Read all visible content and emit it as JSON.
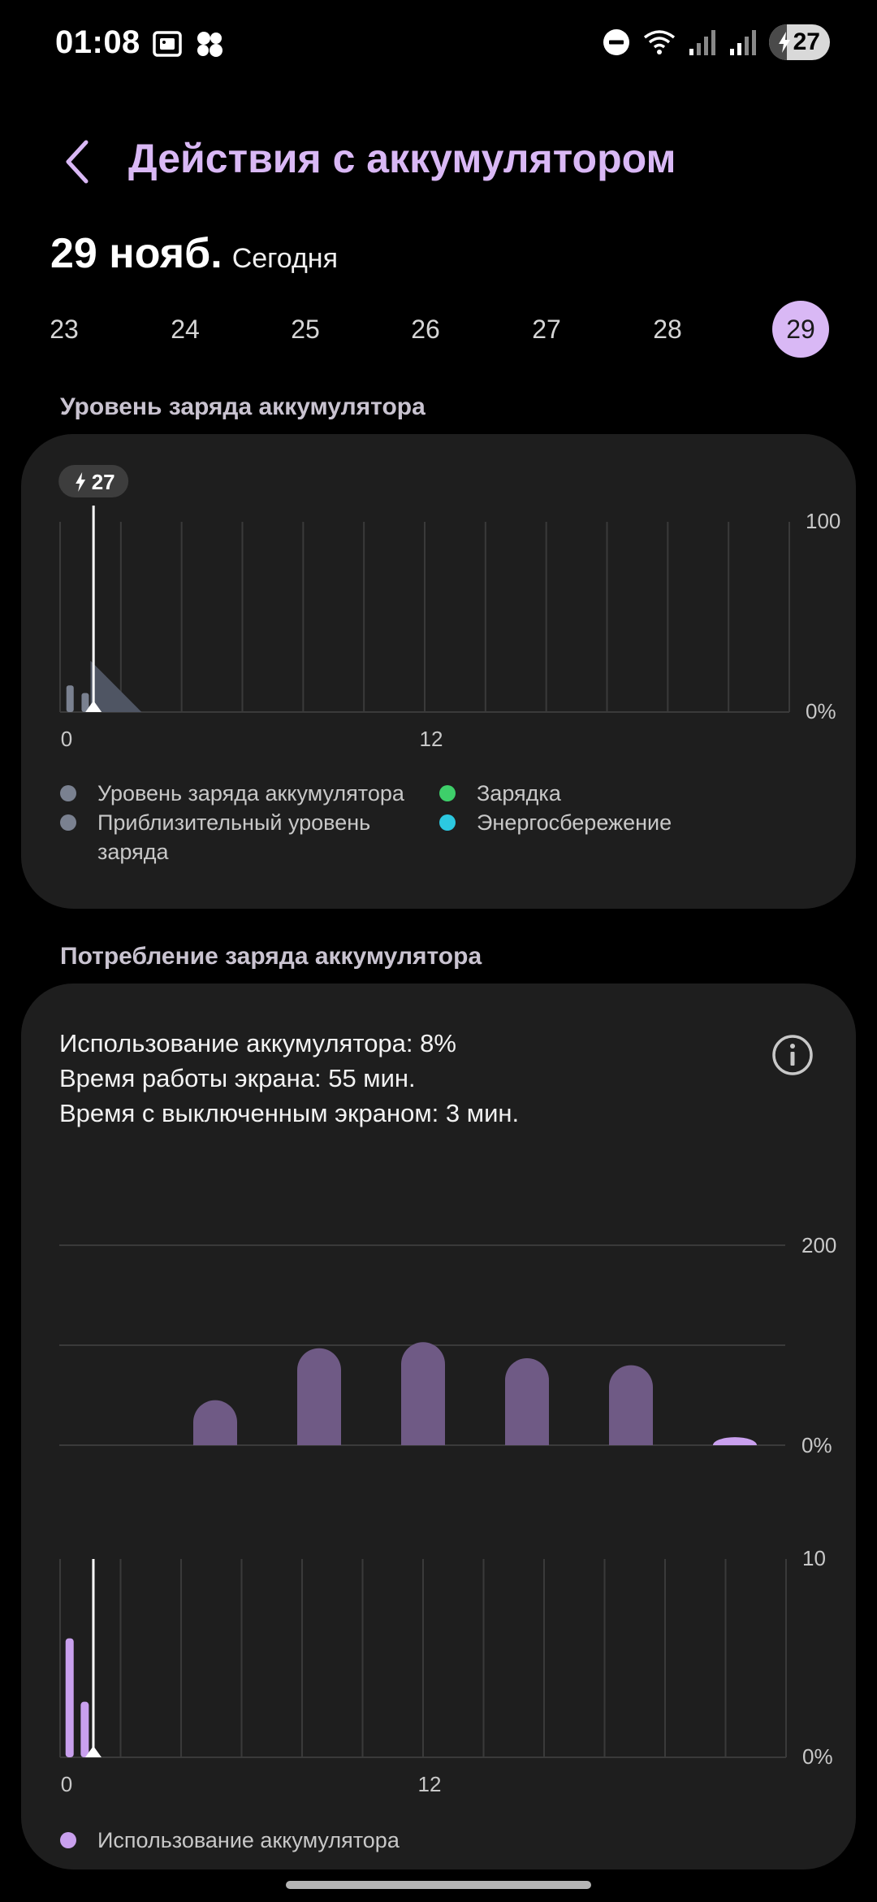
{
  "status_bar": {
    "time": "01:08",
    "battery_level": "27",
    "icons": [
      "screenshot-icon",
      "app-cluster-icon",
      "do-not-disturb-icon",
      "wifi-icon",
      "signal-icon",
      "signal-icon",
      "battery-charging-icon"
    ]
  },
  "header": {
    "title": "Действия с аккумулятором",
    "back_icon": "chevron-left-icon"
  },
  "date": {
    "main": "29 нояб.",
    "sub": "Сегодня"
  },
  "days": [
    "23",
    "24",
    "25",
    "26",
    "27",
    "28",
    "29"
  ],
  "selected_day": "29",
  "battery_level_section": {
    "title": "Уровень заряда аккумулятора",
    "badge": "27",
    "legend": [
      {
        "label": "Уровень заряда аккумулятора",
        "color": "#7a8190"
      },
      {
        "label": "Зарядка",
        "color": "#3ecf6a"
      },
      {
        "label": "Приблизительный уровень заряда",
        "color": "#7a8190"
      },
      {
        "label": "Энергосбережение",
        "color": "#2cc8e0"
      }
    ]
  },
  "consumption_section": {
    "title": "Потребление заряда аккумулятора",
    "lines": [
      "Использование аккумулятора: 8%",
      "Время работы экрана: 55 мин.",
      "Время с выключенным экраном: 3 мин."
    ],
    "legend_label": "Использование аккумулятора",
    "legend_color": "#c9a0ee"
  },
  "colors": {
    "accent": "#d9b8f5",
    "weekly_bar": "#6f5a85",
    "hourly_bar": "#c9a0ee",
    "level_bar": "#7a8190"
  },
  "chart_data": [
    {
      "type": "bar",
      "name": "battery-level-chart",
      "x": [
        "0",
        "12"
      ],
      "ylim": [
        0,
        100
      ],
      "ytick_labels": [
        "100",
        "0%"
      ],
      "xtick_labels": [
        "0",
        "12"
      ],
      "series": [
        {
          "x": [
            0.1,
            0.6
          ],
          "values": [
            14,
            10
          ]
        },
        {
          "x": [
            1.0,
            2.2
          ],
          "values": [
            27,
            0
          ]
        }
      ],
      "current_hour": 1.1,
      "grid": true
    },
    {
      "type": "bar",
      "name": "weekly-usage-chart",
      "categories": [
        "23",
        "24",
        "25",
        "26",
        "27",
        "28",
        "29"
      ],
      "values": [
        0,
        45,
        97,
        103,
        87,
        80,
        8
      ],
      "ylim": [
        0,
        200
      ],
      "ytick_labels": [
        "200",
        "0%"
      ],
      "gridlines": [
        0,
        100,
        200
      ],
      "highlighted": "29"
    },
    {
      "type": "bar",
      "name": "hourly-usage-chart",
      "x": [
        0.1,
        0.6
      ],
      "values": [
        6,
        2.8
      ],
      "ylim": [
        0,
        10
      ],
      "ytick_labels": [
        "10",
        "0%"
      ],
      "xtick_labels": [
        "0",
        "12"
      ],
      "current_hour": 1.1,
      "grid": true
    }
  ]
}
